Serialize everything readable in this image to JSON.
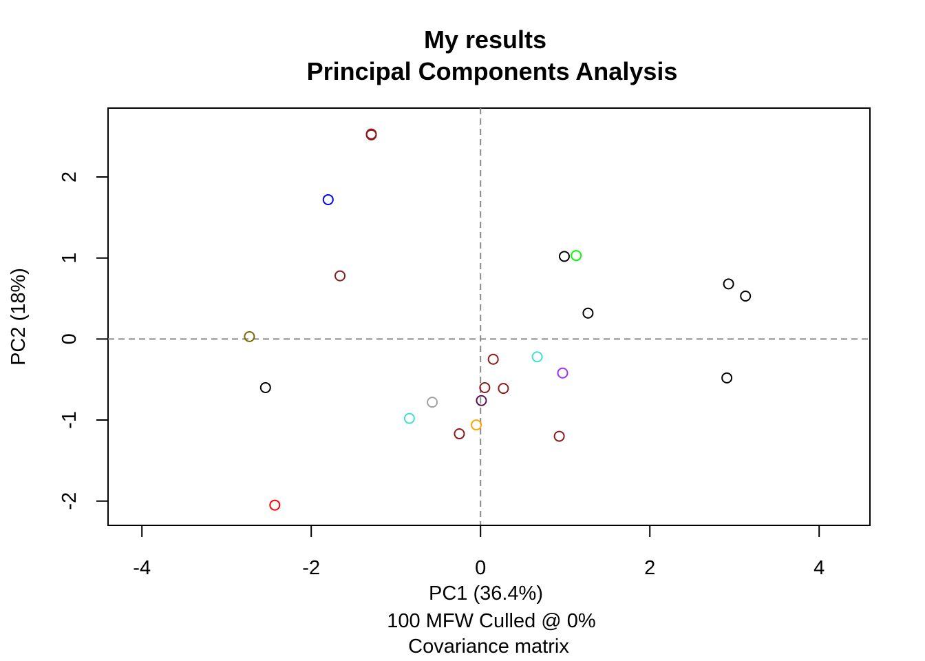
{
  "chart_data": {
    "type": "scatter",
    "title": [
      "My results",
      "Principal Components Analysis"
    ],
    "xlabel": [
      "PC1 (36.4%)",
      "100 MFW  Culled @ 0%",
      "Covariance matrix"
    ],
    "ylabel": "PC2 (18%)",
    "xlim": [
      -4.4,
      4.6
    ],
    "ylim": [
      -2.3,
      2.85
    ],
    "x_ticks": [
      -4,
      -2,
      0,
      2,
      4
    ],
    "x_tick_labels": [
      "-4",
      "-2",
      "0",
      "2",
      "4"
    ],
    "y_ticks": [
      -2,
      -1,
      0,
      1,
      2
    ],
    "y_tick_labels": [
      "-2",
      "-1",
      "0",
      "1",
      "2"
    ],
    "reference_lines": {
      "x": 0,
      "y": 0,
      "style": "dashed",
      "color": "#8a8a8a"
    },
    "grid": false,
    "legend": "none",
    "marker": "open-circle",
    "points": [
      {
        "x": -1.29,
        "y": 2.53,
        "color": "#8b1a1a"
      },
      {
        "x": -1.29,
        "y": 2.52,
        "color": "#8b1a1a"
      },
      {
        "x": -1.8,
        "y": 1.72,
        "color": "#0000ff"
      },
      {
        "x": -1.66,
        "y": 0.78,
        "color": "#8b1a1a"
      },
      {
        "x": -2.73,
        "y": 0.03,
        "color": "#7a6a00"
      },
      {
        "x": -2.54,
        "y": -0.6,
        "color": "#000000"
      },
      {
        "x": -2.43,
        "y": -2.05,
        "color": "#ff0000"
      },
      {
        "x": -0.84,
        "y": -0.98,
        "color": "#40e0d0"
      },
      {
        "x": -0.57,
        "y": -0.78,
        "color": "#a0a0a0"
      },
      {
        "x": -0.25,
        "y": -1.17,
        "color": "#8b1a1a"
      },
      {
        "x": -0.05,
        "y": -1.06,
        "color": "#ffa500"
      },
      {
        "x": 0.01,
        "y": -0.76,
        "color": "#5a1050"
      },
      {
        "x": 0.05,
        "y": -0.6,
        "color": "#8b1a1a"
      },
      {
        "x": 0.15,
        "y": -0.25,
        "color": "#8b1a1a"
      },
      {
        "x": 0.27,
        "y": -0.61,
        "color": "#8b1a1a"
      },
      {
        "x": 0.67,
        "y": -0.22,
        "color": "#40e0d0"
      },
      {
        "x": 0.93,
        "y": -1.2,
        "color": "#8b1a1a"
      },
      {
        "x": 0.97,
        "y": -0.42,
        "color": "#9b30ff"
      },
      {
        "x": 0.99,
        "y": 1.02,
        "color": "#000000"
      },
      {
        "x": 1.13,
        "y": 1.03,
        "color": "#00ff00"
      },
      {
        "x": 1.27,
        "y": 0.32,
        "color": "#000000"
      },
      {
        "x": 2.91,
        "y": -0.48,
        "color": "#000000"
      },
      {
        "x": 2.93,
        "y": 0.68,
        "color": "#000000"
      },
      {
        "x": 3.13,
        "y": 0.53,
        "color": "#000000"
      }
    ]
  }
}
